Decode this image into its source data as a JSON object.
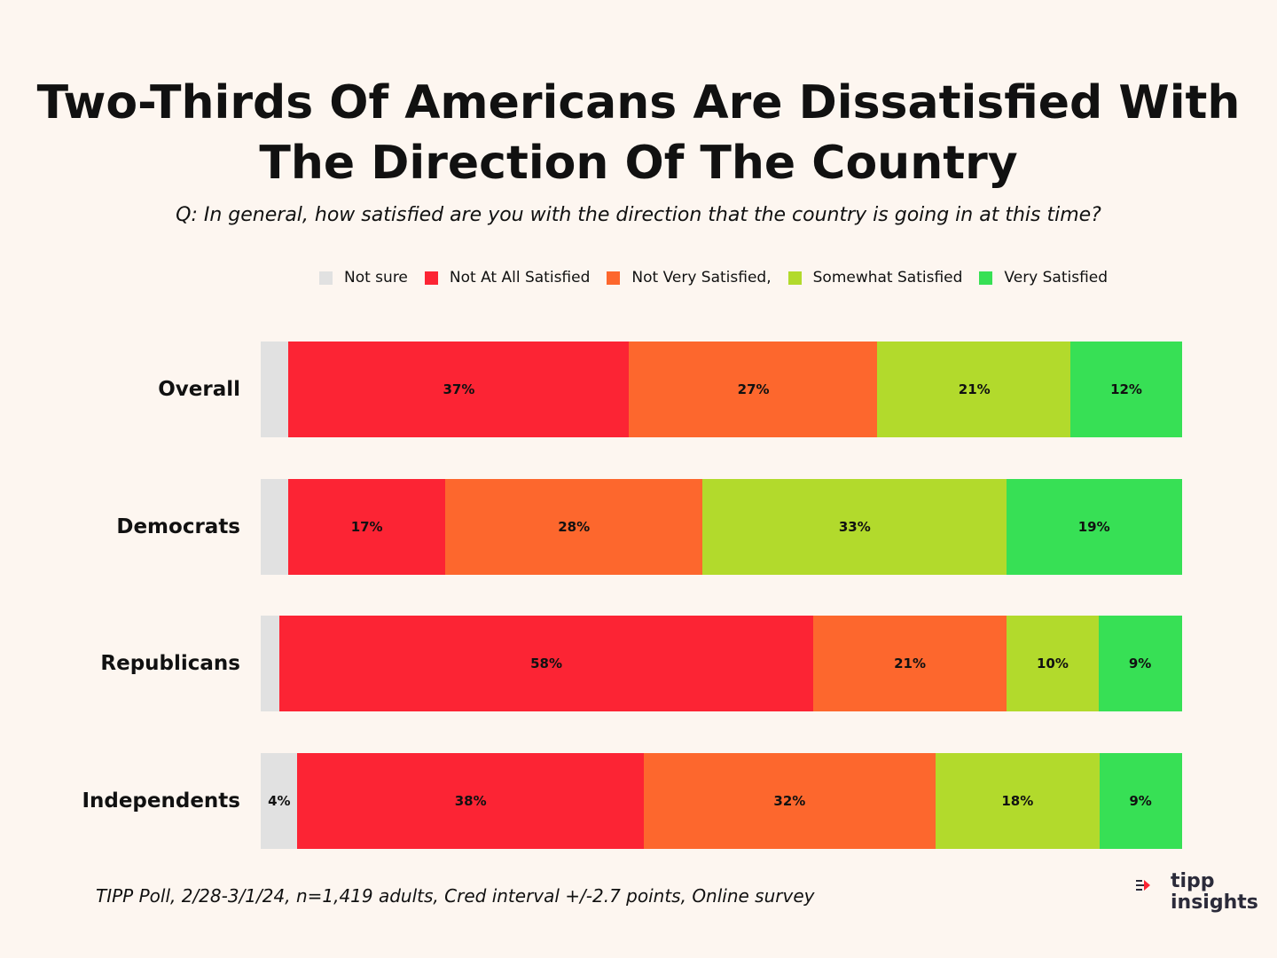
{
  "title_lines": [
    "Two-Thirds Of Americans Are Dissatisfied With",
    "The Direction Of The Country"
  ],
  "subtitle": "Q: In general, how satisfied are you with the direction that the country is going in at this time?",
  "footnote": "TIPP Poll, 2/28-3/1/24, n=1,419 adults, Cred interval +/-2.7 points, Online survey",
  "logo": {
    "line1": "tipp",
    "line2": "insights"
  },
  "colors": {
    "background": "#fdf6f0",
    "not_sure": "#e1e1e1",
    "not_at_all": "#fc2434",
    "not_very": "#fd672d",
    "somewhat": "#b2da2c",
    "very": "#37e055"
  },
  "chart_data": {
    "type": "bar",
    "orientation": "horizontal",
    "stacked": true,
    "normalized": true,
    "title": "Two-Thirds Of Americans Are Dissatisfied With The Direction Of The Country",
    "legend_position": "top",
    "categories": [
      "Overall",
      "Democrats",
      "Republicans",
      "Independents"
    ],
    "series": [
      {
        "name": "Not sure",
        "color": "#e1e1e1",
        "values": [
          3,
          3,
          2,
          4
        ],
        "labels": [
          "",
          "",
          "",
          "4%"
        ]
      },
      {
        "name": "Not At All Satisfied",
        "color": "#fc2434",
        "values": [
          37,
          17,
          58,
          38
        ],
        "labels": [
          "37%",
          "17%",
          "58%",
          "38%"
        ]
      },
      {
        "name": "Not Very Satisfied,",
        "color": "#fd672d",
        "values": [
          27,
          28,
          21,
          32
        ],
        "labels": [
          "27%",
          "28%",
          "21%",
          "32%"
        ]
      },
      {
        "name": "Somewhat Satisfied",
        "color": "#b2da2c",
        "values": [
          21,
          33,
          10,
          18
        ],
        "labels": [
          "21%",
          "33%",
          "10%",
          "18%"
        ]
      },
      {
        "name": "Very Satisfied",
        "color": "#37e055",
        "values": [
          12,
          19,
          9,
          9
        ],
        "labels": [
          "12%",
          "19%",
          "9%",
          "9%"
        ]
      }
    ]
  }
}
